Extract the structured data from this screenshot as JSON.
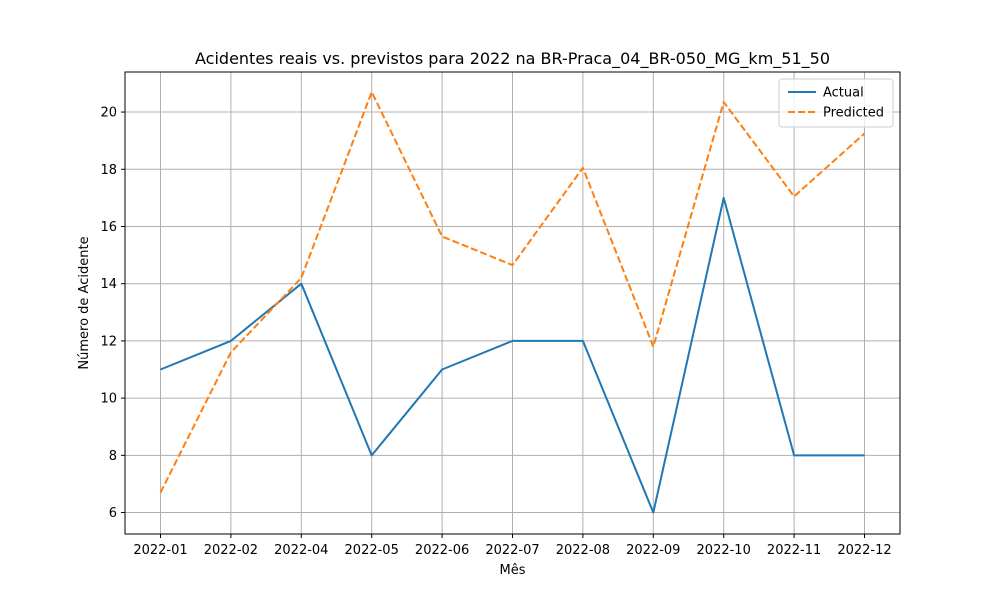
{
  "chart_data": {
    "type": "line",
    "title": "Acidentes reais vs. previstos para 2022 na BR-Praca_04_BR-050_MG_km_51_50",
    "xlabel": "Mês",
    "ylabel": "Número de Acidente",
    "categories": [
      "2022-01",
      "2022-02",
      "2022-04",
      "2022-05",
      "2022-06",
      "2022-07",
      "2022-08",
      "2022-09",
      "2022-10",
      "2022-11",
      "2022-12"
    ],
    "ylim": [
      5.25,
      21.4
    ],
    "yticks": [
      6,
      8,
      10,
      12,
      14,
      16,
      18,
      20
    ],
    "grid": true,
    "legend_position": "top-right",
    "series": [
      {
        "name": "Actual",
        "color": "#1f77b4",
        "style": "solid",
        "values": [
          11,
          12,
          14,
          8,
          11,
          12,
          12,
          6,
          17,
          8,
          8
        ]
      },
      {
        "name": "Predicted",
        "color": "#ff7f0e",
        "style": "dashed",
        "values": [
          6.7,
          11.6,
          14.2,
          20.7,
          15.65,
          14.65,
          18.05,
          11.8,
          20.35,
          17.05,
          19.25
        ]
      }
    ]
  }
}
